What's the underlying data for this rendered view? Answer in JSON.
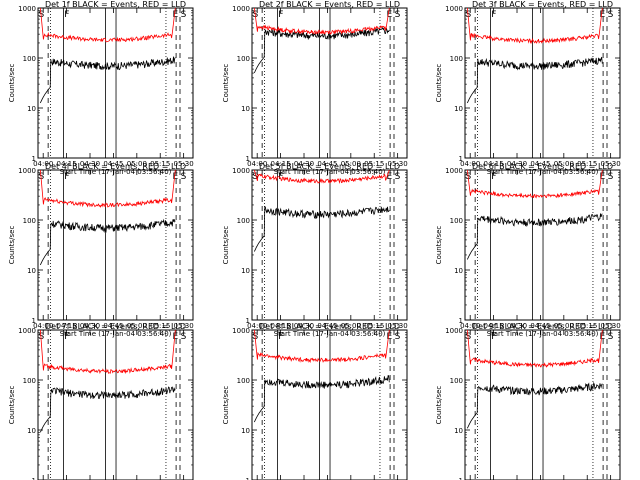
{
  "figure": {
    "x_axis_label": "Start Time (17-Jan-04 03:56:40)",
    "y_axis_label": "Counts/sec",
    "x_tick_labels": [
      "04:00",
      "04:15",
      "04:30",
      "04:45",
      "05:00",
      "05:15",
      "05:30"
    ],
    "y_tick_labels": [
      "1",
      "10",
      "100",
      "1000"
    ],
    "segment_labels": [
      "S",
      "F",
      "E",
      "S"
    ]
  },
  "colors": {
    "events": "#000000",
    "lld": "#ff0000",
    "axes": "#000000"
  },
  "chart_data": [
    {
      "type": "line",
      "title": "Det 1f BLACK = Events, RED = LLD",
      "yscale": "log",
      "ylim": [
        1,
        1000
      ],
      "xlim": [
        "03:56:40",
        "05:36:00"
      ],
      "series": [
        {
          "values_ref": "events",
          "level": 70
        },
        {
          "values_ref": "lld",
          "level": 230
        }
      ]
    },
    {
      "type": "line",
      "title": "Det 2f BLACK = Events, RED = LLD",
      "yscale": "log",
      "ylim": [
        1,
        1000
      ],
      "xlim": [
        "03:56:40",
        "05:36:00"
      ],
      "series": [
        {
          "values_ref": "events",
          "level": 280
        },
        {
          "values_ref": "lld",
          "level": 330
        }
      ]
    },
    {
      "type": "line",
      "title": "Det 3f BLACK = Events, RED = LLD",
      "yscale": "log",
      "ylim": [
        1,
        1000
      ],
      "xlim": [
        "03:56:40",
        "05:36:00"
      ],
      "series": [
        {
          "values_ref": "events",
          "level": 70
        },
        {
          "values_ref": "lld",
          "level": 220
        }
      ]
    },
    {
      "type": "line",
      "title": "Det 4f BLACK = Events, RED = LLD",
      "yscale": "log",
      "ylim": [
        1,
        1000
      ],
      "xlim": [
        "03:56:40",
        "05:36:00"
      ],
      "series": [
        {
          "values_ref": "events",
          "level": 70
        },
        {
          "values_ref": "lld",
          "level": 200
        }
      ]
    },
    {
      "type": "line",
      "title": "Det 5f BLACK = Events, RED = LLD",
      "yscale": "log",
      "ylim": [
        1,
        1000
      ],
      "xlim": [
        "03:56:40",
        "05:36:00"
      ],
      "series": [
        {
          "values_ref": "events",
          "level": 130
        },
        {
          "values_ref": "lld",
          "level": 600
        }
      ]
    },
    {
      "type": "line",
      "title": "Det 6f BLACK = Events, RED = LLD",
      "yscale": "log",
      "ylim": [
        1,
        1000
      ],
      "xlim": [
        "03:56:40",
        "05:36:00"
      ],
      "series": [
        {
          "values_ref": "events",
          "level": 90
        },
        {
          "values_ref": "lld",
          "level": 300
        }
      ]
    },
    {
      "type": "line",
      "title": "Det 7f BLACK = Events, RED = LLD",
      "yscale": "log",
      "ylim": [
        1,
        1000
      ],
      "xlim": [
        "03:56:40",
        "05:36:00"
      ],
      "series": [
        {
          "values_ref": "events",
          "level": 50
        },
        {
          "values_ref": "lld",
          "level": 150
        }
      ]
    },
    {
      "type": "line",
      "title": "Det 8f BLACK = Events, RED = LLD",
      "yscale": "log",
      "ylim": [
        1,
        1000
      ],
      "xlim": [
        "03:56:40",
        "05:36:00"
      ],
      "series": [
        {
          "values_ref": "events",
          "level": 80
        },
        {
          "values_ref": "lld",
          "level": 250
        }
      ]
    },
    {
      "type": "line",
      "title": "Det 9f BLACK = Events, RED = LLD",
      "yscale": "log",
      "ylim": [
        1,
        1000
      ],
      "xlim": [
        "03:56:40",
        "05:36:00"
      ],
      "series": [
        {
          "values_ref": "events",
          "level": 60
        },
        {
          "values_ref": "lld",
          "level": 200
        }
      ]
    }
  ]
}
